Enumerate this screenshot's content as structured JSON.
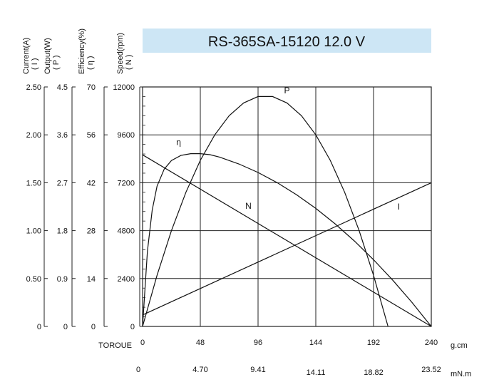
{
  "chart_data": {
    "type": "line",
    "title": "RS-365SA-15120   12.0 V",
    "title_bg_color": "#cde6f5",
    "grid": true,
    "x_axis": {
      "label": "TOROUE",
      "unit": "g.cm",
      "ticks": [
        "0",
        "48",
        "96",
        "144",
        "192",
        "240"
      ],
      "range": [
        0,
        240
      ],
      "secondary_unit": "mN.m",
      "secondary_ticks": [
        "0",
        "4.70",
        "9.41",
        "14.11",
        "18.82",
        "23.52"
      ]
    },
    "y_axes": [
      {
        "label": "Current(A)",
        "symbol": "( I )",
        "range": [
          0,
          2.5
        ],
        "ticks": [
          "0",
          "0.50",
          "1.00",
          "1.50",
          "2.00",
          "2.50"
        ]
      },
      {
        "label": "Output(W)",
        "symbol": "( P )",
        "range": [
          0,
          4.5
        ],
        "ticks": [
          "0",
          "0.9",
          "1.8",
          "2.7",
          "3.6",
          "4.5"
        ]
      },
      {
        "label": "Efficiency(%)",
        "symbol": "( η )",
        "range": [
          0,
          70
        ],
        "ticks": [
          "0",
          "14",
          "28",
          "42",
          "56",
          "70"
        ]
      },
      {
        "label": "Speed(rpm)",
        "symbol": "( N )",
        "range": [
          0,
          12000
        ],
        "ticks": [
          "0",
          "2400",
          "4800",
          "7200",
          "9600",
          "12000"
        ]
      }
    ],
    "series": [
      {
        "name": "N",
        "axis": 3,
        "x": [
          0,
          240
        ],
        "y": [
          8600,
          0
        ]
      },
      {
        "name": "I",
        "axis": 0,
        "x": [
          0,
          240
        ],
        "y": [
          0.12,
          1.5
        ]
      },
      {
        "name": "P",
        "axis": 1,
        "x": [
          0,
          12,
          24,
          36,
          48,
          60,
          72,
          84,
          96,
          108,
          120,
          132,
          144,
          156,
          168,
          180,
          192,
          204,
          216,
          228,
          240
        ],
        "y": [
          0,
          0.96,
          1.8,
          2.52,
          3.12,
          3.6,
          3.96,
          4.2,
          4.32,
          4.32,
          4.2,
          3.96,
          3.6,
          3.12,
          2.52,
          1.8,
          0.96,
          0,
          0,
          0,
          0
        ]
      },
      {
        "name": "η",
        "axis": 2,
        "x": [
          0,
          4,
          8,
          12,
          18,
          24,
          32,
          40,
          48,
          56,
          64,
          80,
          96,
          112,
          128,
          144,
          160,
          176,
          192,
          208,
          224,
          232,
          240
        ],
        "y": [
          0,
          22,
          34,
          41,
          46,
          48.5,
          50,
          50.5,
          50.5,
          50.2,
          49.5,
          47.5,
          45,
          42,
          38.5,
          34.5,
          30,
          25,
          19.5,
          13.5,
          7,
          3.5,
          0
        ]
      }
    ],
    "annotations": [
      {
        "text": "N",
        "x": 88,
        "y_axis": 3,
        "y": 5900
      },
      {
        "text": "I",
        "x": 213,
        "y_axis": 0,
        "y": 1.22
      },
      {
        "text": "P",
        "x": 120,
        "y_axis": 1,
        "y": 4.38
      },
      {
        "text": "η",
        "x": 30,
        "y_axis": 2,
        "y": 53
      }
    ]
  }
}
